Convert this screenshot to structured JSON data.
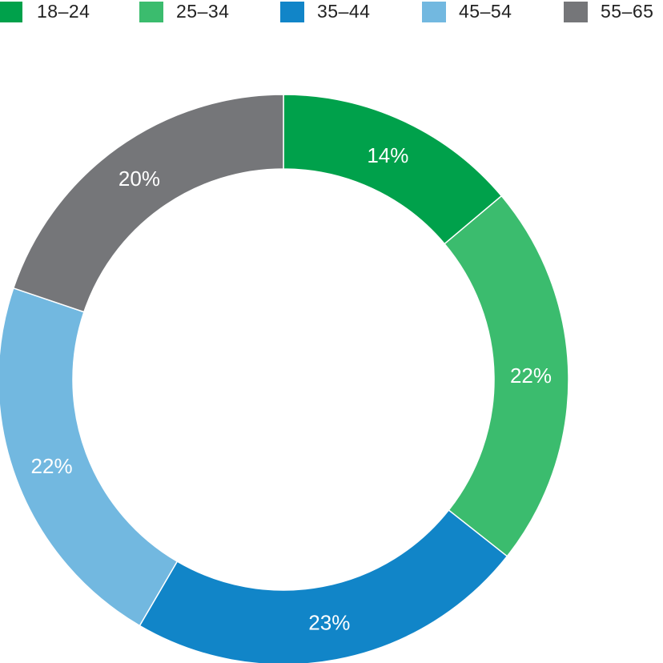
{
  "chart_data": {
    "type": "pie",
    "variant": "donut",
    "title": "",
    "legend_position": "top",
    "categories": [
      "18–24",
      "25–34",
      "35–44",
      "45–54",
      "55–65"
    ],
    "values": [
      14,
      22,
      23,
      22,
      20
    ],
    "labels": [
      "14%",
      "22%",
      "23%",
      "22%",
      "20%"
    ],
    "colors": [
      "#00a14b",
      "#3bbc6e",
      "#1185c8",
      "#72b8e0",
      "#757679"
    ]
  }
}
